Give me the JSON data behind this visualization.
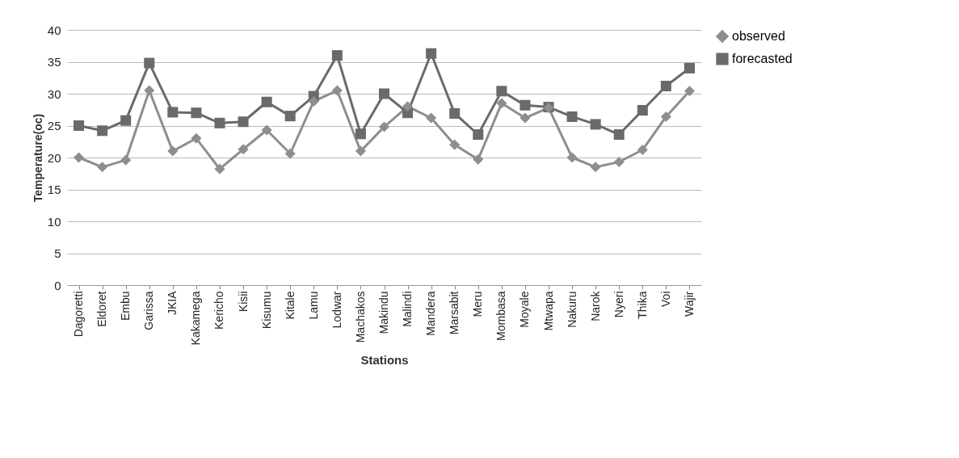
{
  "chart_data": {
    "type": "line",
    "xlabel": "Stations",
    "ylabel": "Temperature(oc)",
    "categories": [
      "Dagoretti",
      "Eldoret",
      "Embu",
      "Garissa",
      "JKIA",
      "Kakamega",
      "Kericho",
      "Kisii",
      "Kisumu",
      "Kitale",
      "Lamu",
      "Lodwar",
      "Machakos",
      "Makindu",
      "Malindi",
      "Mandera",
      "Marsabit",
      "Meru",
      "Mombasa",
      "Moyale",
      "Mtwapa",
      "Nakuru",
      "Narok",
      "Nyeri",
      "Thika",
      "Voi",
      "Wajir"
    ],
    "series": [
      {
        "name": "observed",
        "color": "#8e8e8e",
        "marker": "diamond",
        "values": [
          20,
          18.5,
          19.6,
          30.5,
          21,
          23,
          18.2,
          21.3,
          24.3,
          20.6,
          28.8,
          30.5,
          21,
          24.8,
          28,
          26.2,
          22,
          19.7,
          28.5,
          26.2,
          27.8,
          20,
          18.5,
          19.3,
          21.2,
          26.4,
          30.4
        ]
      },
      {
        "name": "forecasted",
        "color": "#6a6a6a",
        "marker": "square",
        "values": [
          25,
          24.2,
          25.8,
          34.8,
          27.1,
          27,
          25.4,
          25.6,
          28.7,
          26.5,
          29.6,
          36,
          23.7,
          30,
          27,
          36.3,
          26.9,
          23.6,
          30.4,
          28.2,
          27.9,
          26.4,
          25.2,
          23.6,
          27.4,
          31.2,
          34
        ]
      }
    ],
    "ylim": [
      0,
      40
    ],
    "yticks": [
      0,
      5,
      10,
      15,
      20,
      25,
      30,
      35,
      40
    ],
    "grid": "y",
    "legend": "right"
  }
}
